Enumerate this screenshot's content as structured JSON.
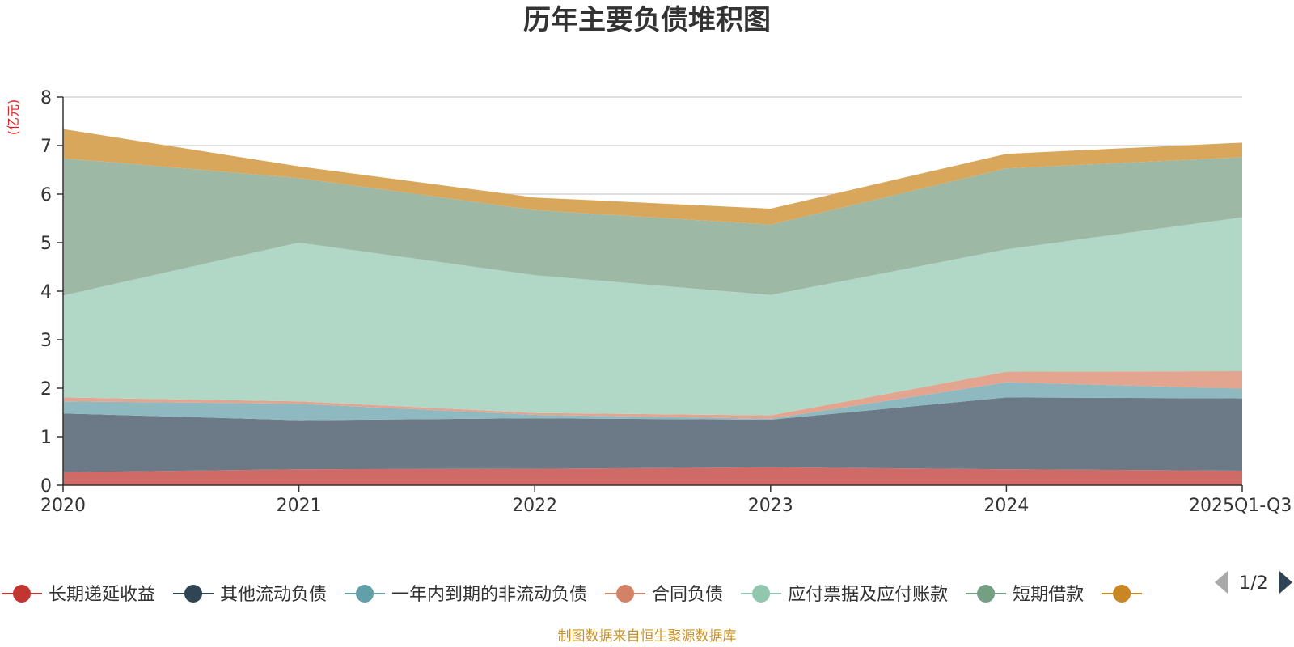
{
  "chart_data": {
    "type": "area",
    "stacked": true,
    "title": "历年主要负债堆积图",
    "unit_label": "(亿元)",
    "categories": [
      "2020",
      "2021",
      "2022",
      "2023",
      "2024",
      "2025Q1-Q3"
    ],
    "ylim": [
      0,
      8
    ],
    "yticks": [
      0,
      1,
      2,
      3,
      4,
      5,
      6,
      7,
      8
    ],
    "grid": true,
    "series": [
      {
        "name": "长期递延收益",
        "color": "#d06a67",
        "legend_color": "#c23531",
        "values": [
          0.27,
          0.33,
          0.34,
          0.37,
          0.33,
          0.3
        ]
      },
      {
        "name": "其他流动负债",
        "color": "#6b7a86",
        "legend_color": "#2f4554",
        "values": [
          1.21,
          1.01,
          1.04,
          0.98,
          1.48,
          1.49
        ]
      },
      {
        "name": "一年内到期的非流动负债",
        "color": "#8fb9c0",
        "legend_color": "#61a0a8",
        "values": [
          0.25,
          0.34,
          0.07,
          0.02,
          0.31,
          0.2
        ]
      },
      {
        "name": "合同负债",
        "color": "#e3a58f",
        "legend_color": "#d48265",
        "values": [
          0.08,
          0.05,
          0.04,
          0.07,
          0.22,
          0.36
        ]
      },
      {
        "name": "应付票据及应付账款",
        "color": "#b1d8c7",
        "legend_color": "#91c7ae",
        "values": [
          2.1,
          3.27,
          2.84,
          2.48,
          2.52,
          3.17
        ]
      },
      {
        "name": "短期借款",
        "color": "#9db9a6",
        "legend_color": "#749f83",
        "values": [
          2.83,
          1.33,
          1.34,
          1.45,
          1.67,
          1.24
        ]
      },
      {
        "name": "",
        "color": "#d8a75c",
        "legend_color": "#ca8622",
        "values": [
          0.6,
          0.24,
          0.26,
          0.33,
          0.3,
          0.3
        ]
      }
    ],
    "legend": {
      "position": "bottom",
      "page_label": "1/2"
    },
    "source_note": "制图数据来自恒生聚源数据库"
  }
}
